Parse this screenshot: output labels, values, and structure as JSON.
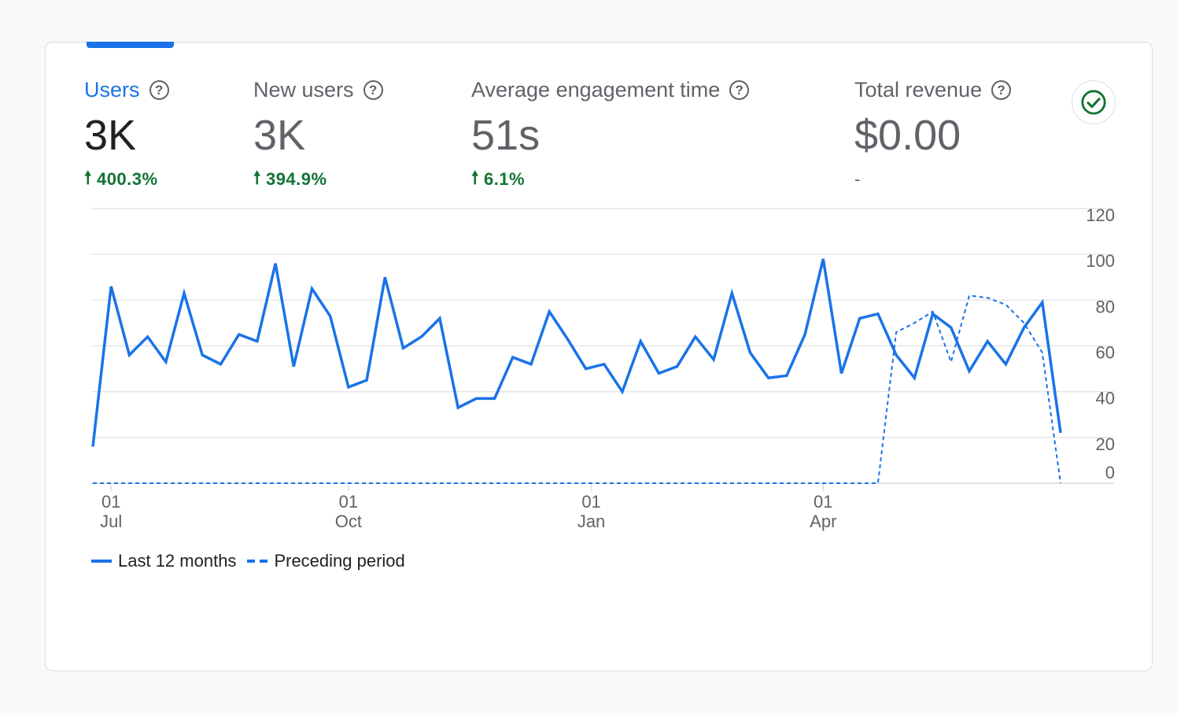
{
  "metrics": [
    {
      "label": "Users",
      "value": "3K",
      "change": "400.3%",
      "direction": "up",
      "active": true
    },
    {
      "label": "New users",
      "value": "3K",
      "change": "394.9%",
      "direction": "up",
      "active": false
    },
    {
      "label": "Average engagement time",
      "value": "51s",
      "change": "6.1%",
      "direction": "up",
      "active": false
    },
    {
      "label": "Total revenue",
      "value": "$0.00",
      "change": "-",
      "direction": "none",
      "active": false
    }
  ],
  "help_icon_glyph": "?",
  "icons": {
    "help": "help-circle-icon",
    "status": "check-circle-icon",
    "change": "arrow-up-icon"
  },
  "colors": {
    "accent": "#1a73e8",
    "positive": "#137333",
    "grid": "#e0e0e0"
  },
  "legend": {
    "solid_label": "Last 12 months",
    "dashed_label": "Preceding period"
  },
  "chart_data": {
    "type": "line",
    "ylim": [
      0,
      120
    ],
    "yticks": [
      0,
      20,
      40,
      60,
      80,
      100,
      120
    ],
    "grid": true,
    "legend_position": "bottom-left",
    "x_ticks": [
      {
        "day": "01",
        "month": "Jul",
        "week": 1
      },
      {
        "day": "01",
        "month": "Oct",
        "week": 14
      },
      {
        "day": "01",
        "month": "Jan",
        "week": 27.3
      },
      {
        "day": "01",
        "month": "Apr",
        "week": 40
      }
    ],
    "series": [
      {
        "name": "Last 12 months",
        "style": "solid",
        "values": [
          16,
          86,
          56,
          64,
          53,
          83,
          56,
          52,
          65,
          62,
          96,
          51,
          85,
          73,
          42,
          45,
          90,
          59,
          64,
          72,
          33,
          37,
          37,
          55,
          52,
          75,
          63,
          50,
          52,
          40,
          62,
          48,
          51,
          64,
          54,
          83,
          57,
          46,
          47,
          65,
          98,
          48,
          72,
          74,
          56,
          46,
          74,
          68,
          49,
          62,
          52,
          68,
          79,
          22
        ]
      },
      {
        "name": "Preceding period",
        "style": "dashed",
        "values": [
          0,
          0,
          0,
          0,
          0,
          0,
          0,
          0,
          0,
          0,
          0,
          0,
          0,
          0,
          0,
          0,
          0,
          0,
          0,
          0,
          0,
          0,
          0,
          0,
          0,
          0,
          0,
          0,
          0,
          0,
          0,
          0,
          0,
          0,
          0,
          0,
          0,
          0,
          0,
          0,
          0,
          0,
          0,
          0,
          66,
          70,
          75,
          53,
          82,
          81,
          78,
          70,
          57,
          0
        ]
      }
    ]
  }
}
